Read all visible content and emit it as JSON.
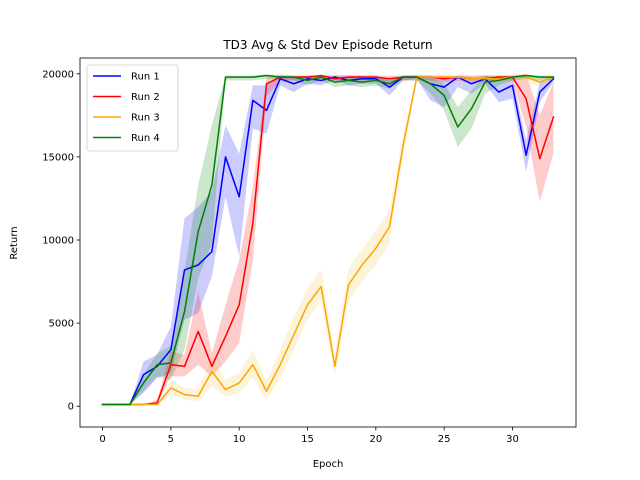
{
  "chart_data": {
    "type": "line",
    "title": "TD3 Avg & Std Dev Episode Return",
    "xlabel": "Epoch",
    "ylabel": "Return",
    "xlim": [
      -1.65,
      34.65
    ],
    "ylim": [
      -1250,
      20950
    ],
    "xticks": [
      0,
      5,
      10,
      15,
      20,
      25,
      30
    ],
    "yticks": [
      0,
      5000,
      10000,
      15000,
      20000
    ],
    "grid": false,
    "legend_position": "top-left",
    "x": [
      0,
      1,
      2,
      3,
      4,
      5,
      6,
      7,
      8,
      9,
      10,
      11,
      12,
      13,
      14,
      15,
      16,
      17,
      18,
      19,
      20,
      21,
      22,
      23,
      24,
      25,
      26,
      27,
      28,
      29,
      30,
      31,
      32,
      33
    ],
    "series": [
      {
        "name": "Run 1",
        "color": "#0000ff",
        "values": [
          100,
          100,
          100,
          1900,
          2400,
          3400,
          8200,
          8500,
          9300,
          15000,
          12600,
          18400,
          17800,
          19700,
          19400,
          19700,
          19600,
          19800,
          19600,
          19700,
          19700,
          19200,
          19800,
          19800,
          19400,
          19200,
          19800,
          19400,
          19700,
          18900,
          19300,
          15100,
          18900,
          19700
        ],
        "lower": [
          100,
          100,
          100,
          800,
          1700,
          2000,
          5200,
          5600,
          7800,
          12600,
          9000,
          16700,
          16400,
          19300,
          18900,
          19400,
          19300,
          19600,
          19300,
          19400,
          19400,
          18700,
          19600,
          19700,
          18400,
          18000,
          19200,
          18800,
          19400,
          18300,
          18500,
          14100,
          18300,
          19500
        ],
        "upper": [
          100,
          100,
          100,
          2700,
          3100,
          4800,
          11300,
          12000,
          12900,
          16900,
          15200,
          19300,
          19300,
          19900,
          19800,
          19900,
          19900,
          19900,
          19900,
          19900,
          19900,
          19600,
          19900,
          19900,
          19900,
          19700,
          19900,
          19800,
          19900,
          19600,
          19800,
          16000,
          19500,
          19900
        ]
      },
      {
        "name": "Run 2",
        "color": "#ff0000",
        "values": [
          100,
          100,
          100,
          100,
          200,
          2500,
          2400,
          4500,
          2400,
          4200,
          6100,
          11000,
          19400,
          19800,
          19800,
          19800,
          19900,
          19700,
          19800,
          19800,
          19800,
          19700,
          19800,
          19800,
          19800,
          19700,
          19800,
          19700,
          19700,
          19800,
          19800,
          18500,
          14900,
          17400
        ],
        "lower": [
          100,
          100,
          100,
          100,
          100,
          1800,
          1800,
          2500,
          1800,
          2700,
          3800,
          8800,
          18600,
          19600,
          19600,
          19600,
          19700,
          19600,
          19600,
          19600,
          19600,
          19500,
          19600,
          19600,
          19600,
          19500,
          19600,
          19500,
          19500,
          19600,
          19600,
          16800,
          12300,
          15200
        ],
        "upper": [
          100,
          100,
          100,
          100,
          400,
          3300,
          3100,
          6900,
          3200,
          6100,
          8800,
          13200,
          19800,
          19900,
          19900,
          19900,
          19900,
          19900,
          19900,
          19900,
          19900,
          19900,
          19900,
          19900,
          19900,
          19900,
          19900,
          19900,
          19900,
          19900,
          19900,
          20000,
          17500,
          19500
        ]
      },
      {
        "name": "Run 3",
        "color": "#ffa500",
        "values": [
          100,
          100,
          100,
          100,
          100,
          1100,
          700,
          600,
          2100,
          1000,
          1400,
          2500,
          900,
          2500,
          4300,
          6100,
          7200,
          2400,
          7300,
          8500,
          9500,
          10800,
          15700,
          19800,
          19800,
          19800,
          19800,
          19700,
          19700,
          19700,
          19800,
          19800,
          19500,
          19800
        ],
        "lower": [
          100,
          100,
          100,
          100,
          100,
          700,
          400,
          300,
          1200,
          600,
          800,
          1700,
          400,
          1600,
          3400,
          5200,
          6300,
          1800,
          6300,
          7500,
          8500,
          9800,
          15000,
          19600,
          19500,
          19600,
          19600,
          19500,
          19500,
          19500,
          19600,
          19600,
          19200,
          19600
        ],
        "upper": [
          100,
          100,
          100,
          100,
          100,
          1600,
          1100,
          1000,
          3000,
          1600,
          2000,
          3400,
          1500,
          3400,
          5400,
          7100,
          8200,
          3000,
          8300,
          9500,
          10600,
          11800,
          16400,
          19900,
          19900,
          19900,
          19900,
          19900,
          19900,
          19900,
          19900,
          19900,
          19800,
          19900
        ],
        "band_color": "#f2c14b"
      },
      {
        "name": "Run 4",
        "color": "#008000",
        "values": [
          100,
          100,
          100,
          1400,
          2500,
          2600,
          5700,
          10500,
          13300,
          19800,
          19800,
          19800,
          19900,
          19800,
          19800,
          19600,
          19800,
          19500,
          19600,
          19500,
          19600,
          19400,
          19800,
          19800,
          19400,
          18700,
          16800,
          17900,
          19500,
          19600,
          19800,
          19900,
          19800,
          19800
        ],
        "lower": [
          100,
          100,
          100,
          900,
          1800,
          1600,
          3400,
          7700,
          9800,
          19600,
          19600,
          19600,
          19700,
          19600,
          19600,
          19300,
          19600,
          19200,
          19300,
          19200,
          19300,
          19100,
          19600,
          19600,
          18800,
          17800,
          15600,
          16700,
          18800,
          19300,
          19600,
          19700,
          19600,
          19600
        ],
        "upper": [
          100,
          100,
          100,
          1900,
          3200,
          3600,
          8100,
          13300,
          16900,
          19900,
          19900,
          19900,
          19950,
          19950,
          19900,
          19850,
          19900,
          19800,
          19800,
          19800,
          19800,
          19700,
          19900,
          19900,
          19800,
          19400,
          18000,
          19000,
          19900,
          19900,
          19900,
          19950,
          19900,
          19900
        ]
      }
    ]
  }
}
